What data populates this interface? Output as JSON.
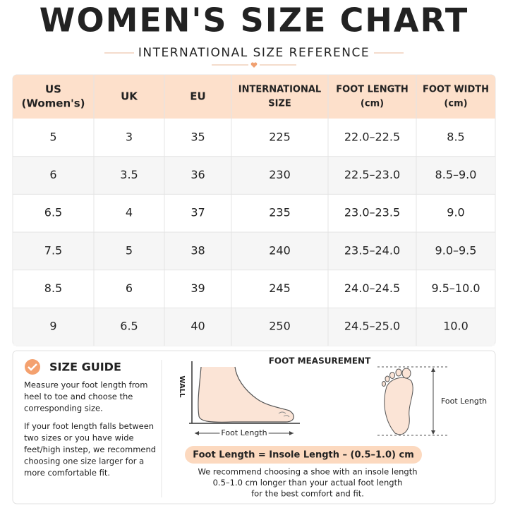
{
  "header": {
    "title": "WOMEN'S SIZE CHART",
    "subtitle": "INTERNATIONAL SIZE REFERENCE"
  },
  "table": {
    "headers": [
      [
        "US",
        "(Women's)"
      ],
      [
        "UK"
      ],
      [
        "EU"
      ],
      [
        "INTERNATIONAL",
        "SIZE"
      ],
      [
        "FOOT LENGTH",
        "(cm)"
      ],
      [
        "FOOT WIDTH",
        "(cm)"
      ]
    ],
    "rows": [
      [
        "5",
        "3",
        "35",
        "225",
        "22.0–22.5",
        "8.5"
      ],
      [
        "6",
        "3.5",
        "36",
        "230",
        "22.5–23.0",
        "8.5–9.0"
      ],
      [
        "6.5",
        "4",
        "37",
        "235",
        "23.0–23.5",
        "9.0"
      ],
      [
        "7.5",
        "5",
        "38",
        "240",
        "23.5–24.0",
        "9.0–9.5"
      ],
      [
        "8.5",
        "6",
        "39",
        "245",
        "24.0–24.5",
        "9.5–10.0"
      ],
      [
        "9",
        "6.5",
        "40",
        "250",
        "24.5–25.0",
        "10.0"
      ]
    ]
  },
  "guide": {
    "title": "SIZE GUIDE",
    "paragraphs": [
      [
        "Measure your foot length from",
        "heel to toe and choose the",
        "corresponding size."
      ],
      [
        "If your foot length falls between",
        "two sizes or you have wide",
        "feet/high instep, we recommend",
        "choosing one size larger for a",
        "more comfortable fit."
      ]
    ]
  },
  "measurement": {
    "title": "FOOT MEASUREMENT",
    "wall_label": "WALL",
    "side_label": "Foot Length",
    "top_label": "Foot Length",
    "formula": "Foot Length = Insole Length – (0.5–1.0) cm",
    "note": [
      "We recommend choosing a shoe with an insole length",
      "0.5–1.0 cm longer than your actual foot length",
      "for the best comfort and fit."
    ]
  }
}
